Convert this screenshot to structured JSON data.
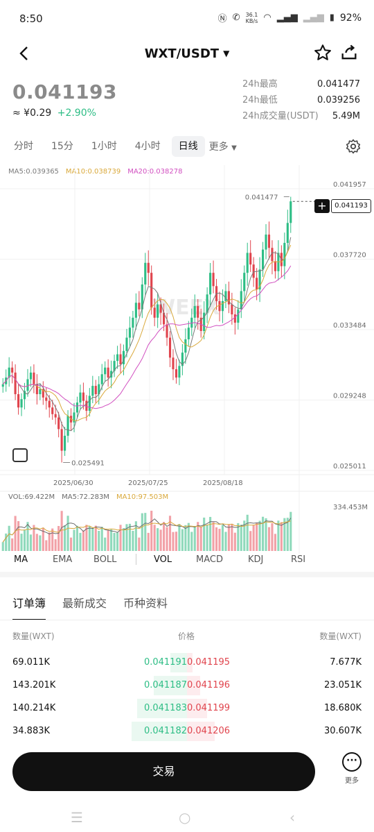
{
  "status_bar": {
    "time": "8:50",
    "net_speed_value": "36.1",
    "net_speed_unit": "KB/s",
    "battery": "92%"
  },
  "header": {
    "pair": "WXT/USDT"
  },
  "price": {
    "last": "0.041193",
    "fiat": "≈ ¥0.29",
    "change": "+2.90%"
  },
  "stats": [
    {
      "label": "24h最高",
      "value": "0.041477"
    },
    {
      "label": "24h最低",
      "value": "0.039256"
    },
    {
      "label": "24h成交量(USDT)",
      "value": "5.49M"
    }
  ],
  "timeframes": {
    "items": [
      "分时",
      "15分",
      "1小时",
      "4小时",
      "日线"
    ],
    "active": "日线",
    "more": "更多"
  },
  "ma_legend": {
    "ma5": "MA5:0.039365",
    "ma10": "MA10:0.038739",
    "ma20": "MA20:0.038278"
  },
  "colors": {
    "up": "#2dbd85",
    "down": "#e0444d",
    "ma5": "#7a7a7a",
    "ma10": "#d9a83a",
    "ma20": "#d14fc0"
  },
  "chart": {
    "y_ticks": [
      "0.041957",
      "0.037720",
      "0.033484",
      "0.029248",
      "0.025011"
    ],
    "x_ticks": [
      "2025/06/30",
      "2025/07/25",
      "2025/08/18"
    ],
    "high_label": "0.041477",
    "low_label": "0.025491",
    "current_label": "0.041193",
    "watermark": "WEEX"
  },
  "chart_data": {
    "type": "candlestick",
    "ylim": [
      0.025011,
      0.041957
    ],
    "y_tick_values": [
      0.041957,
      0.03772,
      0.033484,
      0.029248,
      0.025011
    ],
    "x_ticks": [
      "2025/06/30",
      "2025/07/25",
      "2025/08/18"
    ],
    "marked_high": 0.041477,
    "marked_low": 0.025491,
    "current_price": 0.041193,
    "closes": [
      0.0302,
      0.0306,
      0.0312,
      0.0309,
      0.0296,
      0.0288,
      0.0293,
      0.0298,
      0.0305,
      0.0309,
      0.0302,
      0.0296,
      0.0299,
      0.0294,
      0.0292,
      0.0288,
      0.0284,
      0.0282,
      0.0275,
      0.0262,
      0.0271,
      0.0283,
      0.0279,
      0.0285,
      0.0291,
      0.0297,
      0.0292,
      0.0286,
      0.0295,
      0.0301,
      0.0296,
      0.0302,
      0.0308,
      0.0312,
      0.0306,
      0.031,
      0.0316,
      0.032,
      0.0314,
      0.0322,
      0.033,
      0.0336,
      0.0342,
      0.0351,
      0.0347,
      0.0362,
      0.0375,
      0.0369,
      0.0348,
      0.0342,
      0.035,
      0.0345,
      0.0338,
      0.033,
      0.0318,
      0.0311,
      0.0306,
      0.0313,
      0.0321,
      0.0329,
      0.0336,
      0.0342,
      0.0349,
      0.0342,
      0.0334,
      0.0345,
      0.0356,
      0.0369,
      0.0361,
      0.0352,
      0.0346,
      0.0352,
      0.0358,
      0.035,
      0.0344,
      0.0339,
      0.0347,
      0.0358,
      0.0369,
      0.0381,
      0.0374,
      0.0366,
      0.0359,
      0.0371,
      0.0383,
      0.0392,
      0.0384,
      0.0376,
      0.037,
      0.0381,
      0.0373,
      0.0387,
      0.0399,
      0.0412
    ],
    "volume_max_label": "334.453M",
    "volume_legend": {
      "vol": "VOL:69.422M",
      "ma5": "MA5:72.283M",
      "ma10": "MA10:97.503M"
    }
  },
  "indicators": {
    "main": [
      "MA",
      "EMA",
      "BOLL"
    ],
    "sub": [
      "VOL",
      "MACD",
      "KDJ",
      "RSI"
    ],
    "active": "VOL"
  },
  "orderbook": {
    "tabs": [
      "订单簿",
      "最新成交",
      "币种资料"
    ],
    "headers": {
      "bid_qty": "数量(WXT)",
      "price": "价格",
      "ask_qty": "数量(WXT)"
    },
    "rows": [
      {
        "bid_qty": "69.011K",
        "bid_price": "0.041191",
        "ask_price": "0.041195",
        "ask_qty": "7.677K",
        "bid_depth": 0.15,
        "ask_depth": 0.05
      },
      {
        "bid_qty": "143.201K",
        "bid_price": "0.041187",
        "ask_price": "0.041196",
        "ask_qty": "23.051K",
        "bid_depth": 0.3,
        "ask_depth": 0.12
      },
      {
        "bid_qty": "140.214K",
        "bid_price": "0.041183",
        "ask_price": "0.041199",
        "ask_qty": "18.680K",
        "bid_depth": 0.45,
        "ask_depth": 0.18
      },
      {
        "bid_qty": "34.883K",
        "bid_price": "0.041182",
        "ask_price": "0.041206",
        "ask_qty": "30.607K",
        "bid_depth": 0.5,
        "ask_depth": 0.25
      }
    ]
  },
  "bottom": {
    "trade": "交易",
    "more": "更多"
  }
}
